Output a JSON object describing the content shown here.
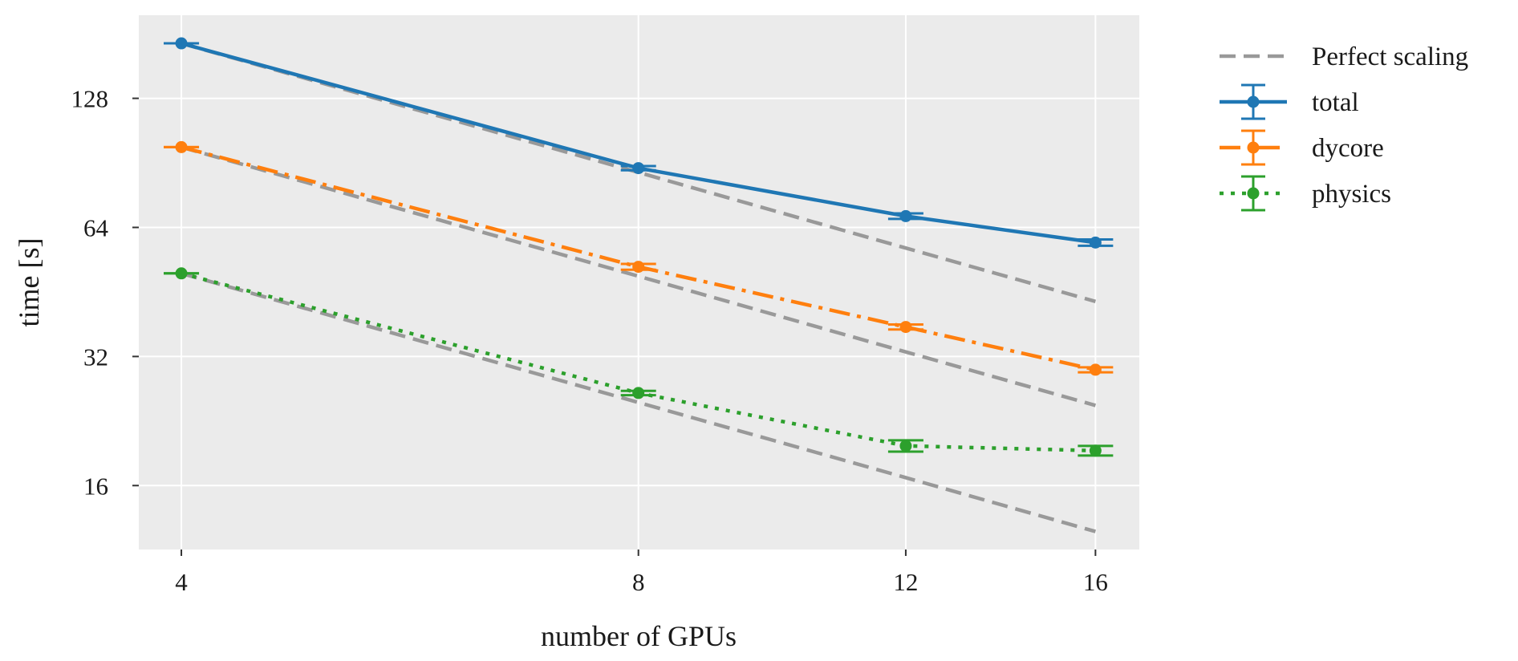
{
  "chart_data": {
    "type": "line",
    "title": "",
    "xlabel": "number of GPUs",
    "ylabel": "time [s]",
    "x_scale": "log",
    "y_scale": "log",
    "x": [
      4,
      8,
      12,
      16
    ],
    "xticks": [
      4,
      8,
      12,
      16
    ],
    "yticks": [
      16,
      32,
      64,
      128
    ],
    "xlim": [
      3.75,
      17.1
    ],
    "ylim": [
      11.35,
      200
    ],
    "grid": true,
    "legend_position": "outside-right",
    "series": [
      {
        "name": "Perfect scaling",
        "values": [
          172,
          86,
          57.3,
          43
        ],
        "color": "#999999",
        "style": "dashed",
        "markers": false
      },
      {
        "name": "Perfect scaling",
        "values": [
          98.5,
          49.25,
          32.8,
          24.6
        ],
        "color": "#999999",
        "style": "dashed",
        "markers": false
      },
      {
        "name": "Perfect scaling",
        "values": [
          50,
          25,
          16.7,
          12.5
        ],
        "color": "#999999",
        "style": "dashed",
        "markers": false
      },
      {
        "name": "total",
        "values": [
          172,
          88,
          68,
          59
        ],
        "error": [
          0,
          1,
          1,
          1
        ],
        "color": "#1f77b4",
        "style": "solid",
        "markers": true
      },
      {
        "name": "dycore",
        "values": [
          98.5,
          51.8,
          37.5,
          29.8
        ],
        "error": [
          0,
          0.8,
          0.5,
          0.4
        ],
        "color": "#ff7f0e",
        "style": "dashdot",
        "markers": true
      },
      {
        "name": "physics",
        "values": [
          50,
          26.3,
          19.8,
          19.3
        ],
        "error": [
          0,
          0.3,
          0.6,
          0.5
        ],
        "color": "#2ca02c",
        "style": "dotted",
        "markers": true
      }
    ],
    "legend": [
      "Perfect scaling",
      "total",
      "dycore",
      "physics"
    ]
  }
}
